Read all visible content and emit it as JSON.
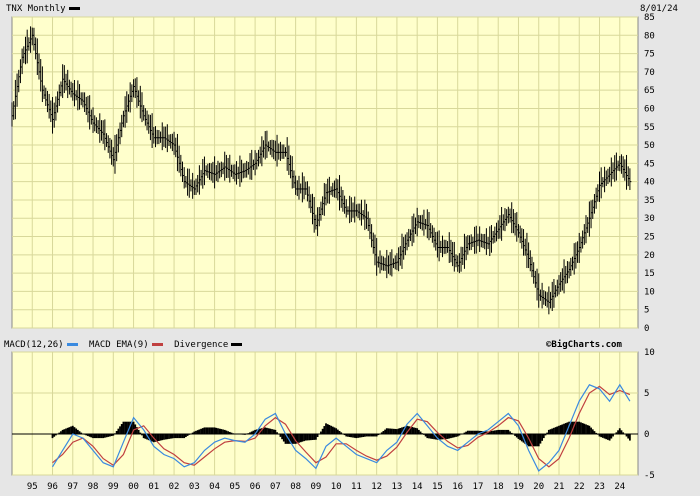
{
  "header": {
    "symbol_label": "TNX Monthly",
    "date": "8/01/24",
    "logo": "©BigCharts.com"
  },
  "legend": {
    "macd": "MACD(12,26)",
    "ema": "MACD EMA(9)",
    "divergence": "Divergence"
  },
  "colors": {
    "background": "#ffffcc",
    "grid": "#d8d89a",
    "price": "#000000",
    "macd": "#3a8ae0",
    "ema": "#c04040",
    "divergence": "#000000"
  },
  "chart_data": [
    {
      "type": "line",
      "title": "TNX Monthly",
      "ylim": [
        0,
        85
      ],
      "yticks": [
        0,
        5,
        10,
        15,
        20,
        25,
        30,
        35,
        40,
        45,
        50,
        55,
        60,
        65,
        70,
        75,
        80,
        85
      ],
      "x": [
        1994.0,
        1994.5,
        1995.0,
        1995.5,
        1996.0,
        1996.5,
        1997.0,
        1997.5,
        1998.0,
        1998.5,
        1999.0,
        1999.5,
        2000.0,
        2000.5,
        2001.0,
        2001.5,
        2002.0,
        2002.5,
        2003.0,
        2003.5,
        2004.0,
        2004.5,
        2005.0,
        2005.5,
        2006.0,
        2006.5,
        2007.0,
        2007.5,
        2008.0,
        2008.5,
        2009.0,
        2009.5,
        2010.0,
        2010.5,
        2011.0,
        2011.5,
        2012.0,
        2012.5,
        2013.0,
        2013.5,
        2014.0,
        2014.5,
        2015.0,
        2015.5,
        2016.0,
        2016.5,
        2017.0,
        2017.5,
        2018.0,
        2018.5,
        2019.0,
        2019.5,
        2020.0,
        2020.5,
        2021.0,
        2021.5,
        2022.0,
        2022.5,
        2023.0,
        2023.5,
        2024.0,
        2024.5
      ],
      "series": [
        {
          "values": [
            58,
            74,
            80,
            65,
            57,
            68,
            64,
            62,
            56,
            53,
            46,
            58,
            66,
            58,
            52,
            52,
            50,
            40,
            38,
            43,
            42,
            44,
            42,
            43,
            45,
            50,
            48,
            48,
            38,
            38,
            28,
            37,
            38,
            32,
            32,
            30,
            18,
            17,
            18,
            24,
            29,
            28,
            22,
            22,
            17,
            23,
            24,
            23,
            27,
            31,
            26,
            19,
            9,
            7,
            12,
            16,
            22,
            30,
            39,
            42,
            45,
            40
          ]
        }
      ]
    },
    {
      "type": "line",
      "title": "MACD(12,26) / MACD EMA(9) / Divergence",
      "ylim": [
        -5,
        10
      ],
      "yticks": [
        -5,
        0,
        5,
        10
      ],
      "categories": [
        "95",
        "96",
        "97",
        "98",
        "99",
        "00",
        "01",
        "02",
        "03",
        "04",
        "05",
        "06",
        "07",
        "08",
        "09",
        "10",
        "11",
        "12",
        "13",
        "14",
        "15",
        "16",
        "17",
        "18",
        "19",
        "20",
        "21",
        "22",
        "23",
        "24"
      ],
      "x": [
        1996.0,
        1996.5,
        1997.0,
        1997.5,
        1998.0,
        1998.5,
        1999.0,
        1999.5,
        2000.0,
        2000.5,
        2001.0,
        2001.5,
        2002.0,
        2002.5,
        2003.0,
        2003.5,
        2004.0,
        2004.5,
        2005.0,
        2005.5,
        2006.0,
        2006.5,
        2007.0,
        2007.5,
        2008.0,
        2008.5,
        2009.0,
        2009.5,
        2010.0,
        2010.5,
        2011.0,
        2011.5,
        2012.0,
        2012.5,
        2013.0,
        2013.5,
        2014.0,
        2014.5,
        2015.0,
        2015.5,
        2016.0,
        2016.5,
        2017.0,
        2017.5,
        2018.0,
        2018.5,
        2019.0,
        2019.5,
        2020.0,
        2020.5,
        2021.0,
        2021.5,
        2022.0,
        2022.5,
        2023.0,
        2023.5,
        2024.0,
        2024.5
      ],
      "series": [
        {
          "name": "MACD(12,26)",
          "values": [
            -4,
            -2,
            0,
            -0.5,
            -2,
            -3.5,
            -4,
            -1,
            2,
            0.5,
            -1.5,
            -2.5,
            -3,
            -4,
            -3.5,
            -2,
            -1,
            -0.5,
            -0.8,
            -1,
            0,
            1.8,
            2.5,
            0,
            -2,
            -3,
            -4.2,
            -1.5,
            -0.5,
            -1.5,
            -2.5,
            -3,
            -3.5,
            -2,
            -1,
            1.2,
            2.5,
            1,
            -0.5,
            -1.5,
            -2,
            -1,
            0,
            0.5,
            1.5,
            2.5,
            1,
            -2,
            -4.5,
            -3.5,
            -2,
            1,
            4,
            6,
            5.5,
            4,
            6,
            4
          ]
        },
        {
          "name": "MACD EMA(9)",
          "values": [
            -3.5,
            -2.5,
            -1,
            -0.5,
            -1.5,
            -3,
            -3.8,
            -2.5,
            0.5,
            1,
            -0.5,
            -1.8,
            -2.5,
            -3.5,
            -3.8,
            -2.8,
            -1.8,
            -1,
            -0.8,
            -0.9,
            -0.5,
            1,
            2,
            1.2,
            -0.8,
            -2.2,
            -3.5,
            -2.8,
            -1.2,
            -1.2,
            -2,
            -2.7,
            -3.2,
            -2.7,
            -1.6,
            0.2,
            1.8,
            1.5,
            0.2,
            -0.9,
            -1.7,
            -1.4,
            -0.4,
            0.2,
            1,
            2,
            1.6,
            -0.5,
            -3,
            -4,
            -3,
            -0.5,
            2.5,
            5,
            5.8,
            4.8,
            5.3,
            4.8
          ]
        },
        {
          "name": "Divergence",
          "values": [
            -0.5,
            0.5,
            1,
            0,
            -0.5,
            -0.5,
            -0.2,
            1.5,
            1.5,
            -0.5,
            -1,
            -0.7,
            -0.5,
            -0.5,
            0.3,
            0.8,
            0.8,
            0.5,
            0,
            -0.1,
            0.5,
            0.8,
            0.5,
            -1.2,
            -1.2,
            -0.8,
            -0.7,
            1.3,
            0.7,
            -0.3,
            -0.5,
            -0.3,
            -0.3,
            0.7,
            0.6,
            1,
            0.7,
            -0.5,
            -0.7,
            -0.6,
            -0.3,
            0.4,
            0.4,
            0.3,
            0.5,
            0.5,
            -0.6,
            -1.5,
            -1.5,
            0.5,
            1,
            1.5,
            1.5,
            1,
            -0.3,
            -0.8,
            0.7,
            -0.8
          ]
        }
      ]
    }
  ]
}
